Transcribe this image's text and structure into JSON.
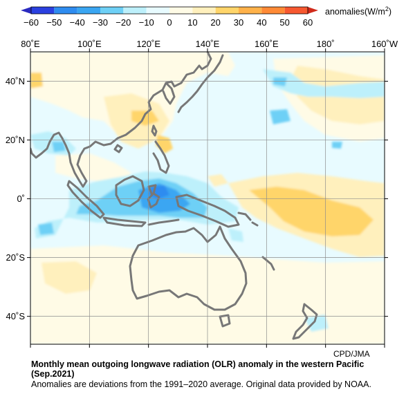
{
  "colorbar": {
    "title": "anomalies(W/m",
    "title_sup": "2",
    "title_end": ")",
    "ticks": [
      "−60",
      "−50",
      "−40",
      "−30",
      "−20",
      "−10",
      "0",
      "10",
      "20",
      "30",
      "40",
      "50",
      "60"
    ],
    "bins": [
      {
        "from": -60,
        "to": -50,
        "color": "#2a40e0"
      },
      {
        "from": -50,
        "to": -40,
        "color": "#2e8cf0"
      },
      {
        "from": -40,
        "to": -30,
        "color": "#3aa6f2"
      },
      {
        "from": -30,
        "to": -20,
        "color": "#6ed0f6"
      },
      {
        "from": -20,
        "to": -10,
        "color": "#bdf0fb"
      },
      {
        "from": -10,
        "to": 0,
        "color": "#e8fbff"
      },
      {
        "from": 0,
        "to": 10,
        "color": "#fffbe6"
      },
      {
        "from": 10,
        "to": 20,
        "color": "#fff0bd"
      },
      {
        "from": 20,
        "to": 30,
        "color": "#ffd56a"
      },
      {
        "from": 30,
        "to": 40,
        "color": "#ffb24a"
      },
      {
        "from": 40,
        "to": 50,
        "color": "#ff8a36"
      },
      {
        "from": 50,
        "to": 60,
        "color": "#f75830"
      }
    ],
    "under_color": "#2a2abf",
    "over_color": "#d02a1a"
  },
  "map": {
    "lon_labels": [
      {
        "lon": 80,
        "text": "80˚E"
      },
      {
        "lon": 100,
        "text": "100˚E"
      },
      {
        "lon": 120,
        "text": "120˚E"
      },
      {
        "lon": 140,
        "text": "140˚E"
      },
      {
        "lon": 160,
        "text": "160˚E"
      },
      {
        "lon": 180,
        "text": "180˚"
      },
      {
        "lon": 200,
        "text": "160˚W"
      }
    ],
    "lat_labels": [
      {
        "lat": 40,
        "text": "40˚N"
      },
      {
        "lat": 20,
        "text": "20˚N"
      },
      {
        "lat": 0,
        "text": "0˚"
      },
      {
        "lat": -20,
        "text": "20˚S"
      },
      {
        "lat": -40,
        "text": "40˚S"
      }
    ],
    "background_color": "#e8fbff",
    "coast_color": "#777777",
    "grid_color": "#8c8c8c"
  },
  "caption": {
    "credit": "CPD/JMA",
    "title": "Monthly mean outgoing longwave radiation (OLR) anomaly in the western Pacific",
    "period": "(Sep.2021)",
    "note": "Anomalies are deviations from the 1991–2020 average. Original data provided by NOAA."
  }
}
